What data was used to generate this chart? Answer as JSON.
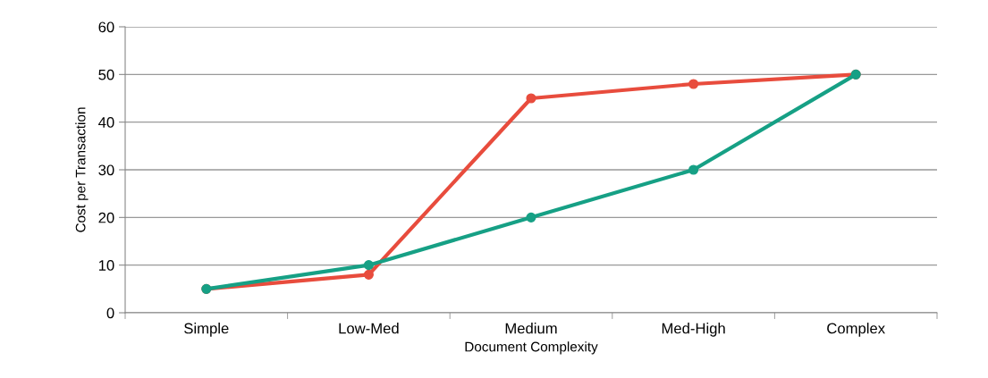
{
  "chart_data": {
    "type": "line",
    "xlabel": "Document Complexity",
    "ylabel": "Cost per Transaction",
    "categories": [
      "Simple",
      "Low-Med",
      "Medium",
      "Med-High",
      "Complex"
    ],
    "series": [
      {
        "color": "#e84c3d",
        "values": [
          5,
          8,
          45,
          48,
          50
        ]
      },
      {
        "color": "#16a085",
        "values": [
          5,
          10,
          20,
          30,
          50
        ]
      }
    ],
    "ylim": [
      0,
      60
    ],
    "yticks": [
      0,
      10,
      20,
      30,
      40,
      50,
      60
    ],
    "grid": "y",
    "marker": "circle",
    "line_style": "solid"
  }
}
